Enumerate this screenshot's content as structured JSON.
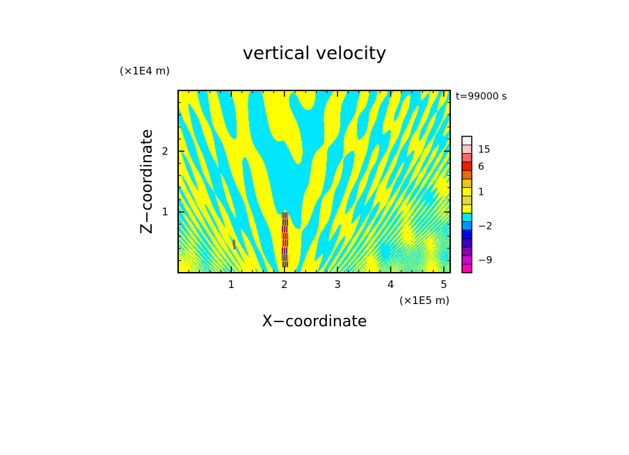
{
  "chart_data": {
    "type": "heatmap",
    "title": "vertical velocity",
    "xlabel": "X−coordinate",
    "ylabel": "Z−coordinate",
    "x_unit": "(×1E5 m)",
    "y_unit": "(×1E4 m)",
    "time_label": "t=99000 s",
    "xlim": [
      0,
      5.12
    ],
    "ylim": [
      0,
      3.0
    ],
    "x_ticks": [
      1,
      2,
      3,
      4,
      5
    ],
    "y_ticks": [
      1,
      2
    ],
    "x_tick_labels": [
      "1",
      "2",
      "3",
      "4",
      "5"
    ],
    "y_tick_labels": [
      "1",
      "2"
    ],
    "colorbar": {
      "levels": [
        {
          "value": -12,
          "color": "#ff00b4"
        },
        {
          "value": -9,
          "color": "#d200d2"
        },
        {
          "value": -6,
          "color": "#8c00b4"
        },
        {
          "value": -4,
          "color": "#3c00c8"
        },
        {
          "value": -3,
          "color": "#0000ff"
        },
        {
          "value": -2,
          "color": "#0096ff"
        },
        {
          "value": -1,
          "color": "#00e6ff"
        },
        {
          "value": 0,
          "color": "#ffff00"
        },
        {
          "value": 0.5,
          "color": "#e6dc32"
        },
        {
          "value": 1,
          "color": "#ffff00"
        },
        {
          "value": 2,
          "color": "#f0c800"
        },
        {
          "value": 4,
          "color": "#e66e00"
        },
        {
          "value": 6,
          "color": "#f01e00"
        },
        {
          "value": 9,
          "color": "#ff6464"
        },
        {
          "value": 15,
          "color": "#ffc8c8"
        },
        {
          "value": 20,
          "color": "#fff0f0"
        }
      ],
      "tick_labels": [
        "15",
        "6",
        "1",
        "−2",
        "−9"
      ]
    },
    "field_colors": {
      "positive": "#ffff00",
      "negative": "#00e6ff",
      "strong_positive": "#ff0000",
      "strong_negative": "#0000c8"
    }
  }
}
